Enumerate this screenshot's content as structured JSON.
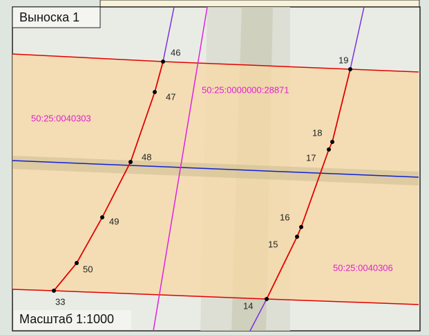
{
  "callout": {
    "title": "Выноска 1",
    "scale": "Масштаб 1:1000"
  },
  "parcels": [
    "50:25:0000000:28871",
    "50:25:0040303",
    "50:25:0040306"
  ],
  "points": [
    "46",
    "47",
    "48",
    "49",
    "50",
    "33",
    "19",
    "18",
    "17",
    "16",
    "15",
    "14"
  ]
}
